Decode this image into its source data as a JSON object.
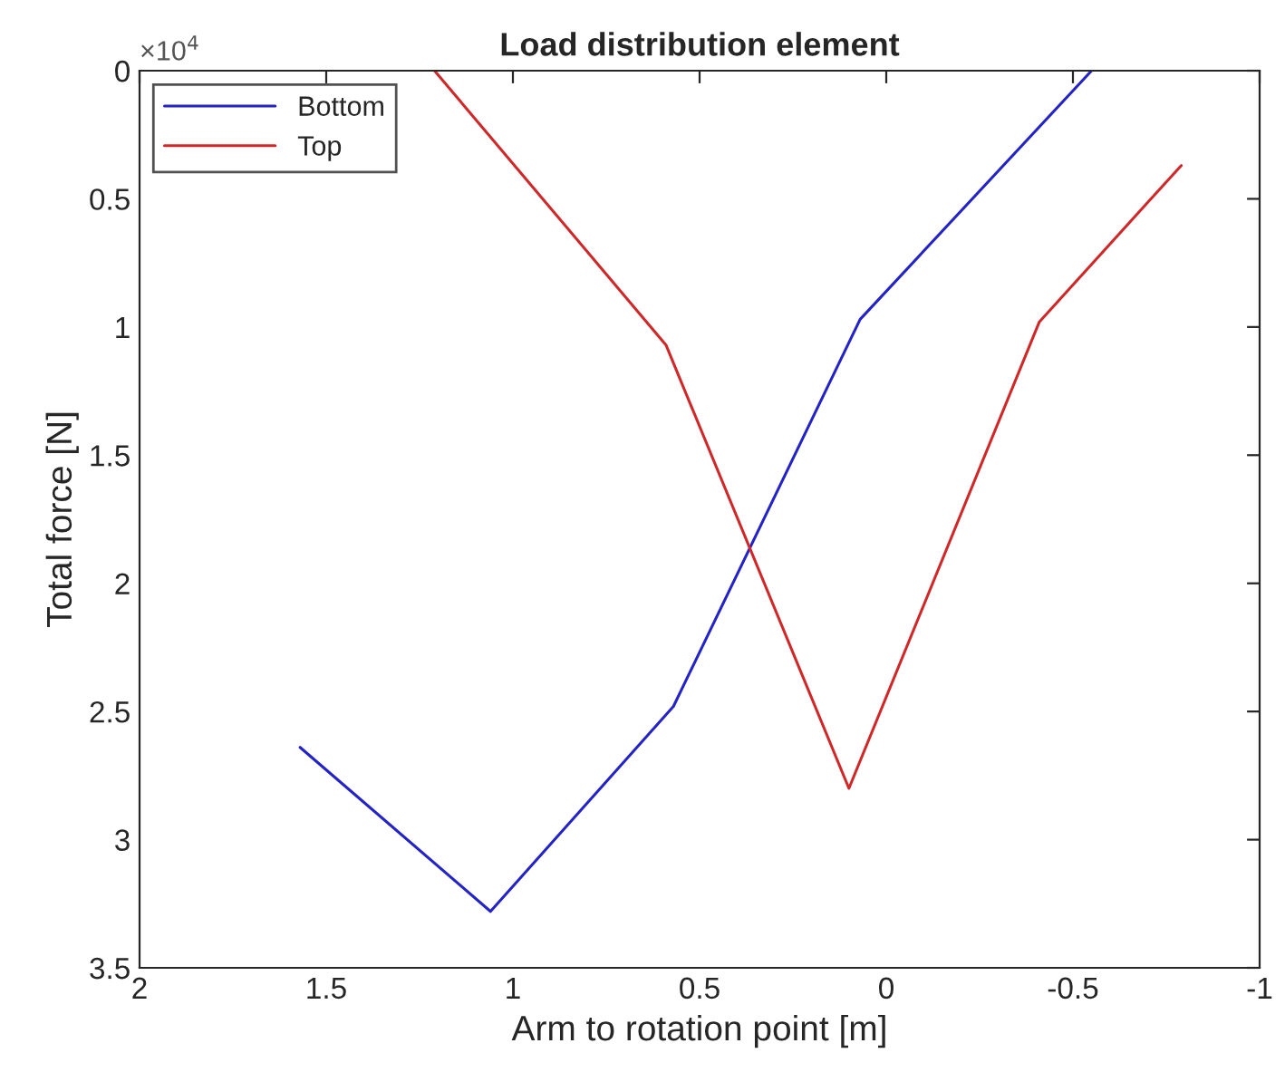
{
  "chart_data": {
    "type": "line",
    "title": "Load distribution element",
    "xlabel": "Arm to rotation point [m]",
    "ylabel": "Total force [N]",
    "annotations": [
      "×10$^{4}$"
    ],
    "series": [
      {
        "name": "Bottom",
        "color": "#2323c8",
        "x": [
          1.57,
          1.06,
          0.57,
          0.07,
          -0.55
        ],
        "values": [
          2.64,
          3.28,
          2.48,
          0.97,
          0
        ]
      },
      {
        "name": "Top",
        "color": "#d02828",
        "x": [
          1.21,
          0.59,
          0.1,
          -0.41,
          -0.79
        ],
        "values": [
          0,
          1.07,
          2.8,
          0.98,
          0.37
        ]
      }
    ],
    "xlim": [
      2,
      -1
    ],
    "xticks": [
      2,
      1.5,
      1,
      0.5,
      0,
      -0.5,
      -1
    ],
    "ylim": [
      3.5,
      0
    ],
    "yticks": [
      0,
      0.5,
      1,
      1.5,
      2,
      2.5,
      3,
      3.5
    ],
    "grid": false,
    "legend": "top left",
    "marker": "none",
    "line_style": "solid"
  }
}
